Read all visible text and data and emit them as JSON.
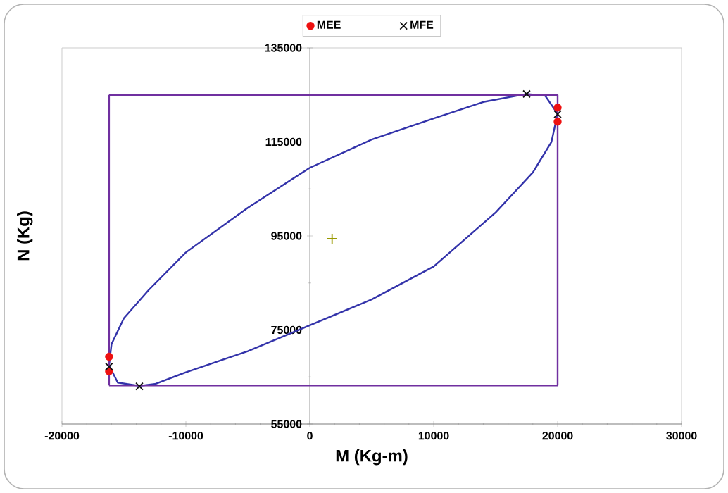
{
  "chart_data": {
    "type": "line",
    "xlabel": "M (Kg-m)",
    "ylabel": "N (Kg)",
    "xlim": [
      -20000,
      30000
    ],
    "xticks": [
      -20000,
      -10000,
      0,
      10000,
      20000,
      30000
    ],
    "ylim": [
      55000,
      135000
    ],
    "yticks": [
      55000,
      75000,
      95000,
      115000,
      135000
    ],
    "grid": false,
    "legend": "top",
    "series": [
      {
        "color": "#3333aa",
        "marker": "none",
        "x": [
          -16200,
          -16000,
          -15000,
          -13000,
          -10000,
          -5000,
          0,
          5000,
          10000,
          14000,
          17500,
          19000,
          20000
        ],
        "values": [
          67500,
          72000,
          77500,
          83500,
          91500,
          101000,
          109500,
          115500,
          120000,
          123500,
          125200,
          124800,
          121000
        ]
      },
      {
        "color": "#3333aa",
        "marker": "none",
        "x": [
          -16200,
          -15500,
          -13750,
          -12500,
          -10000,
          -5000,
          0,
          5000,
          10000,
          15000,
          18000,
          19500,
          20000
        ],
        "values": [
          67500,
          63800,
          63100,
          63500,
          66000,
          70500,
          76000,
          81500,
          88500,
          100000,
          108500,
          115000,
          121000
        ]
      },
      {
        "color": "#7030a0",
        "marker": "none",
        "x": [
          -16200,
          20000
        ],
        "values": [
          125000,
          125000
        ]
      },
      {
        "color": "#7030a0",
        "marker": "none",
        "x": [
          -16200,
          20000
        ],
        "values": [
          63200,
          63200
        ]
      },
      {
        "color": "#7030a0",
        "marker": "none",
        "x": [
          -16200,
          -16200
        ],
        "values": [
          63200,
          125000
        ]
      },
      {
        "color": "#7030a0",
        "marker": "none",
        "x": [
          20000,
          20000
        ],
        "values": [
          63200,
          125000
        ]
      },
      {
        "type": "scatter",
        "color": "#999900",
        "marker": "plus",
        "x": [
          1800
        ],
        "values": [
          94400
        ]
      },
      {
        "type": "scatter",
        "name": "MEE",
        "color": "#ee1111",
        "marker": "circle",
        "x": [
          20000,
          20000,
          -16200,
          -16200
        ],
        "values": [
          122300,
          119300,
          69300,
          66200
        ]
      },
      {
        "type": "scatter",
        "name": "MFE",
        "color": "#111111",
        "marker": "cross",
        "x": [
          17500,
          20000,
          -16200,
          -13750
        ],
        "values": [
          125200,
          120900,
          67200,
          63000
        ]
      }
    ]
  }
}
